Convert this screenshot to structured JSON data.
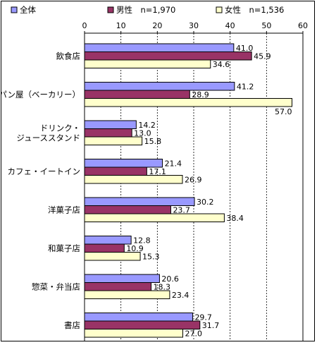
{
  "chart_data": {
    "type": "bar",
    "orientation": "horizontal",
    "xlim": [
      0,
      60
    ],
    "ticks": [
      "0",
      "10",
      "20",
      "30",
      "40",
      "50",
      "60"
    ],
    "tick_values": [
      0,
      10,
      20,
      30,
      40,
      50,
      60
    ],
    "grid": true,
    "legend_position": "top",
    "categories": [
      [
        "飲食店"
      ],
      [
        "パン屋（ベーカリー）"
      ],
      [
        "ドリンク・",
        "ジューススタンド"
      ],
      [
        "カフェ・イートイン"
      ],
      [
        "洋菓子店"
      ],
      [
        "和菓子店"
      ],
      [
        "惣菜・弁当店"
      ],
      [
        "書店"
      ]
    ],
    "series": [
      {
        "name": "全体",
        "legend_label": "全体",
        "color": "#9999ff",
        "values": [
          41.0,
          41.2,
          14.2,
          21.4,
          30.2,
          12.8,
          20.6,
          29.7
        ],
        "labels": [
          "41.0",
          "41.2",
          "14.2",
          "21.4",
          "30.2",
          "12.8",
          "20.6",
          "29.7"
        ]
      },
      {
        "name": "男性",
        "legend_label": "男性　n=1,970",
        "color": "#993366",
        "values": [
          45.9,
          28.9,
          13.0,
          17.1,
          23.7,
          10.9,
          18.3,
          31.7
        ],
        "labels": [
          "45.9",
          "28.9",
          "13.0",
          "17.1",
          "23.7",
          "10.9",
          "18.3",
          "31.7"
        ]
      },
      {
        "name": "女性",
        "legend_label": "女性　n=1,536",
        "color": "#ffffcc",
        "values": [
          34.6,
          57.0,
          15.8,
          26.9,
          38.4,
          15.3,
          23.4,
          27.0
        ],
        "labels": [
          "34.6",
          "57.0",
          "15.8",
          "26.9",
          "38.4",
          "15.3",
          "23.4",
          "27.0"
        ]
      }
    ]
  }
}
